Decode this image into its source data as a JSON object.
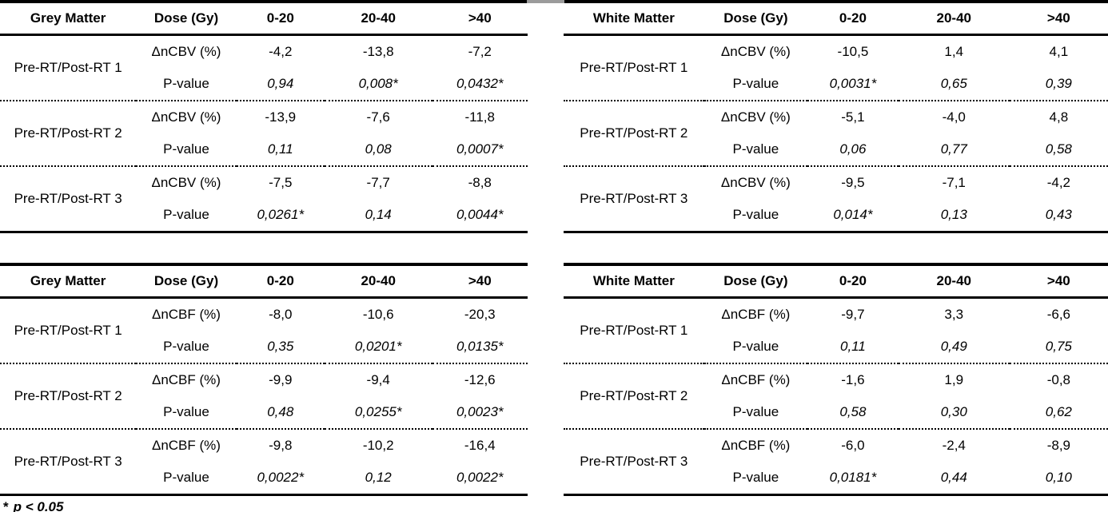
{
  "figure": {
    "footnote_marker": "*",
    "footnote_text": "p < 0.05"
  },
  "tables": [
    {
      "name": "grey-matter-cbv",
      "header": {
        "region": "Grey Matter",
        "dose_label": "Dose (Gy)",
        "dose_bins": [
          "0-20",
          "20-40",
          ">40"
        ]
      },
      "groups": [
        {
          "label": "Pre-RT/Post-RT 1",
          "metric_label": "ΔnCBV (%)",
          "metric_values": [
            "-4,2",
            "-13,8",
            "-7,2"
          ],
          "p_label": "P-value",
          "p_values": [
            "0,94",
            "0,008*",
            "0,0432*"
          ]
        },
        {
          "label": "Pre-RT/Post-RT 2",
          "metric_label": "ΔnCBV (%)",
          "metric_values": [
            "-13,9",
            "-7,6",
            "-11,8"
          ],
          "p_label": "P-value",
          "p_values": [
            "0,11",
            "0,08",
            "0,0007*"
          ]
        },
        {
          "label": "Pre-RT/Post-RT 3",
          "metric_label": "ΔnCBV (%)",
          "metric_values": [
            "-7,5",
            "-7,7",
            "-8,8"
          ],
          "p_label": "P-value",
          "p_values": [
            "0,0261*",
            "0,14",
            "0,0044*"
          ]
        }
      ]
    },
    {
      "name": "white-matter-cbv",
      "header": {
        "region": "White Matter",
        "dose_label": "Dose (Gy)",
        "dose_bins": [
          "0-20",
          "20-40",
          ">40"
        ]
      },
      "groups": [
        {
          "label": "Pre-RT/Post-RT 1",
          "metric_label": "ΔnCBV (%)",
          "metric_values": [
            "-10,5",
            "1,4",
            "4,1"
          ],
          "p_label": "P-value",
          "p_values": [
            "0,0031*",
            "0,65",
            "0,39"
          ]
        },
        {
          "label": "Pre-RT/Post-RT 2",
          "metric_label": "ΔnCBV (%)",
          "metric_values": [
            "-5,1",
            "-4,0",
            "4,8"
          ],
          "p_label": "P-value",
          "p_values": [
            "0,06",
            "0,77",
            "0,58"
          ]
        },
        {
          "label": "Pre-RT/Post-RT 3",
          "metric_label": "ΔnCBV (%)",
          "metric_values": [
            "-9,5",
            "-7,1",
            "-4,2"
          ],
          "p_label": "P-value",
          "p_values": [
            "0,014*",
            "0,13",
            "0,43"
          ]
        }
      ]
    },
    {
      "name": "grey-matter-cbf",
      "header": {
        "region": "Grey Matter",
        "dose_label": "Dose (Gy)",
        "dose_bins": [
          "0-20",
          "20-40",
          ">40"
        ]
      },
      "groups": [
        {
          "label": "Pre-RT/Post-RT 1",
          "metric_label": "ΔnCBF (%)",
          "metric_values": [
            "-8,0",
            "-10,6",
            "-20,3"
          ],
          "p_label": "P-value",
          "p_values": [
            "0,35",
            "0,0201*",
            "0,0135*"
          ]
        },
        {
          "label": "Pre-RT/Post-RT 2",
          "metric_label": "ΔnCBF (%)",
          "metric_values": [
            "-9,9",
            "-9,4",
            "-12,6"
          ],
          "p_label": "P-value",
          "p_values": [
            "0,48",
            "0,0255*",
            "0,0023*"
          ]
        },
        {
          "label": "Pre-RT/Post-RT 3",
          "metric_label": "ΔnCBF (%)",
          "metric_values": [
            "-9,8",
            "-10,2",
            "-16,4"
          ],
          "p_label": "P-value",
          "p_values": [
            "0,0022*",
            "0,12",
            "0,0022*"
          ]
        }
      ]
    },
    {
      "name": "white-matter-cbf",
      "header": {
        "region": "White Matter",
        "dose_label": "Dose (Gy)",
        "dose_bins": [
          "0-20",
          "20-40",
          ">40"
        ]
      },
      "groups": [
        {
          "label": "Pre-RT/Post-RT 1",
          "metric_label": "ΔnCBF (%)",
          "metric_values": [
            "-9,7",
            "3,3",
            "-6,6"
          ],
          "p_label": "P-value",
          "p_values": [
            "0,11",
            "0,49",
            "0,75"
          ]
        },
        {
          "label": "Pre-RT/Post-RT 2",
          "metric_label": "ΔnCBF (%)",
          "metric_values": [
            "-1,6",
            "1,9",
            "-0,8"
          ],
          "p_label": "P-value",
          "p_values": [
            "0,58",
            "0,30",
            "0,62"
          ]
        },
        {
          "label": "Pre-RT/Post-RT 3",
          "metric_label": "ΔnCBF (%)",
          "metric_values": [
            "-6,0",
            "-2,4",
            "-8,9"
          ],
          "p_label": "P-value",
          "p_values": [
            "0,0181*",
            "0,44",
            "0,10"
          ]
        }
      ]
    }
  ]
}
